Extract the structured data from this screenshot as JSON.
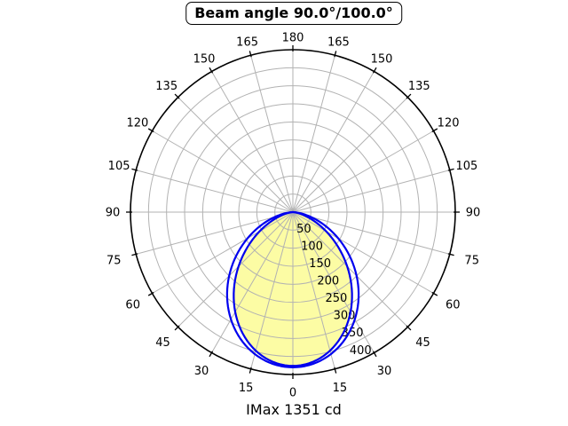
{
  "chart_data": {
    "type": "polar",
    "title": "Beam angle 90.0°/100.0°",
    "footer_label": "IMax 1351 cd",
    "imax_cd": 1351,
    "beam_angle_deg": [
      90.0,
      100.0
    ],
    "r_axis": {
      "max": 450,
      "tick_values": [
        50,
        100,
        150,
        200,
        250,
        300,
        350,
        400
      ],
      "tick_labels": [
        "50",
        "100",
        "150",
        "200",
        "250",
        "300",
        "350",
        "400"
      ],
      "label_angle_deg": 25
    },
    "theta_axis": {
      "step_deg": 15,
      "zero_position": "bottom",
      "labels": [
        {
          "a": 0,
          "t": "0"
        },
        {
          "a": 15,
          "t": "15"
        },
        {
          "a": -15,
          "t": "15"
        },
        {
          "a": 30,
          "t": "30"
        },
        {
          "a": -30,
          "t": "30"
        },
        {
          "a": 45,
          "t": "45"
        },
        {
          "a": -45,
          "t": "45"
        },
        {
          "a": 60,
          "t": "60"
        },
        {
          "a": -60,
          "t": "60"
        },
        {
          "a": 75,
          "t": "75"
        },
        {
          "a": -75,
          "t": "75"
        },
        {
          "a": 90,
          "t": "90"
        },
        {
          "a": -90,
          "t": "90"
        },
        {
          "a": 105,
          "t": "105"
        },
        {
          "a": -105,
          "t": "105"
        },
        {
          "a": 120,
          "t": "120"
        },
        {
          "a": -120,
          "t": "120"
        },
        {
          "a": 135,
          "t": "135"
        },
        {
          "a": -135,
          "t": "135"
        },
        {
          "a": 150,
          "t": "150"
        },
        {
          "a": -150,
          "t": "150"
        },
        {
          "a": 165,
          "t": "165"
        },
        {
          "a": -165,
          "t": "165"
        },
        {
          "a": 180,
          "t": "180"
        }
      ]
    },
    "series": [
      {
        "name": "beam-profile-inner",
        "model": "cos-power",
        "fwhm_deg": 90.0,
        "peak": 426,
        "stroke": "#0000ee",
        "fill": "#fcfca4"
      },
      {
        "name": "beam-profile-outer",
        "model": "cos-power",
        "fwhm_deg": 100.0,
        "peak": 430,
        "stroke": "#0000ee",
        "fill": "none"
      }
    ],
    "colors": {
      "curve": "#0000ee",
      "beam_fill": "#fcfca4",
      "grid": "#b2b2b2",
      "axis": "#000000",
      "text": "#000000",
      "background": "#ffffff"
    }
  }
}
